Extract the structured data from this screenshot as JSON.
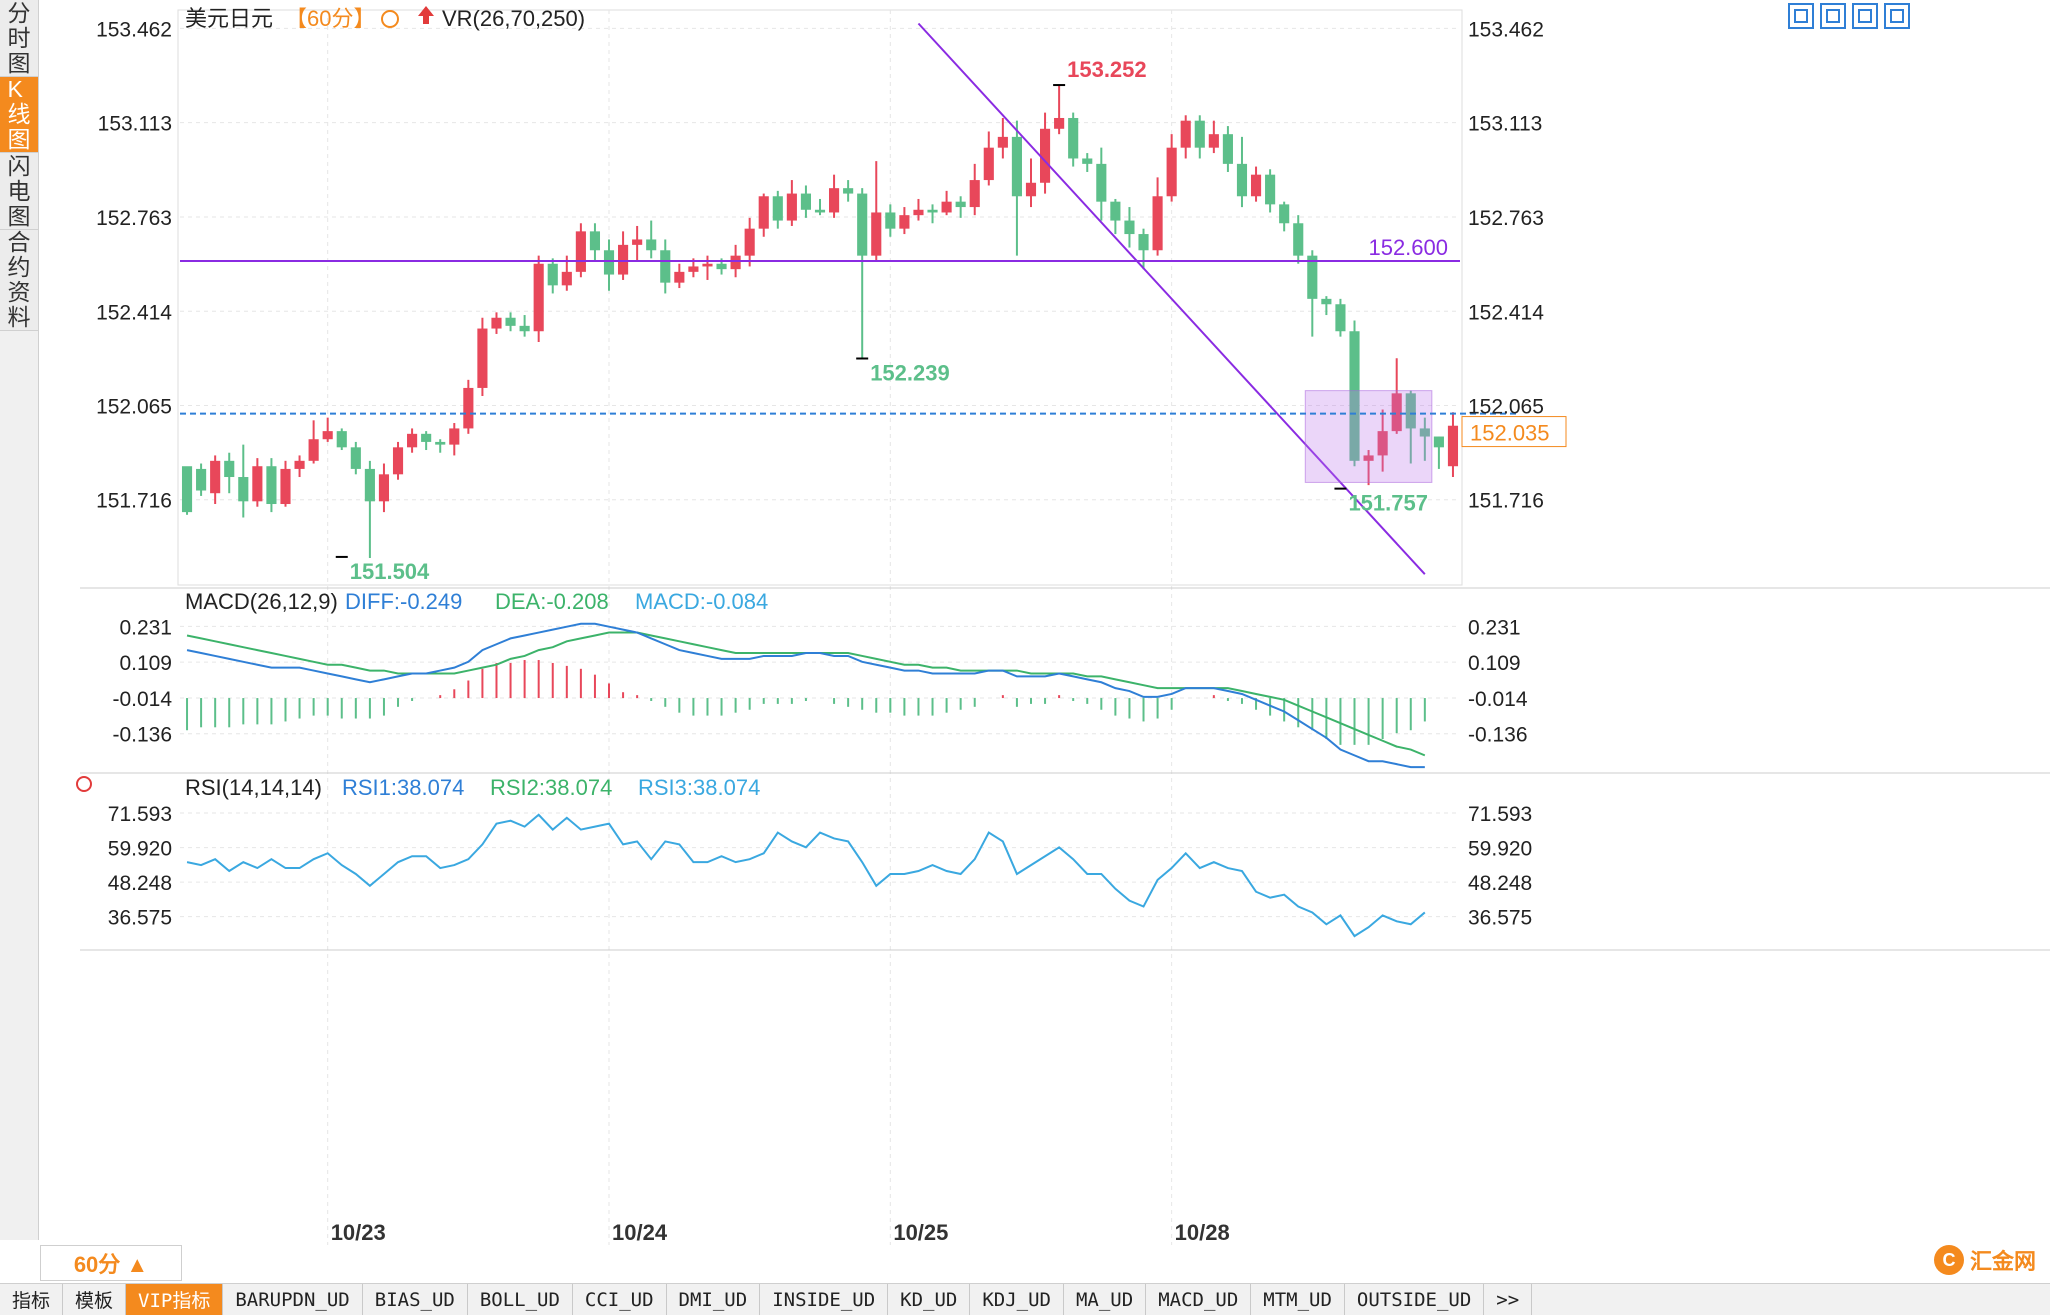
{
  "sidebar": {
    "items": [
      {
        "label": "分时图",
        "active": false
      },
      {
        "label": "K线图",
        "active": true
      },
      {
        "label": "闪电图",
        "active": false
      },
      {
        "label": "合约资料",
        "active": false
      }
    ]
  },
  "header": {
    "symbol": "美元日元",
    "period": "【60分】",
    "vr_label": "VR(26,70,250)"
  },
  "period_selector": "60分 ▲",
  "tabs": [
    "指标",
    "模板",
    "VIP指标",
    "BARUPDN_UD",
    "BIAS_UD",
    "BOLL_UD",
    "CCI_UD",
    "DMI_UD",
    "INSIDE_UD",
    "KD_UD",
    "KDJ_UD",
    "MA_UD",
    "MACD_UD",
    "MTM_UD",
    "OUTSIDE_UD",
    ">>"
  ],
  "logo_text": "汇金网",
  "colors": {
    "up": "#e8475a",
    "down": "#5cbf8a",
    "ma_line": "#8a2be2",
    "current_price": "#f48a1e",
    "diff": "#2f7fd6",
    "dea": "#3cb36a",
    "rsi": "#3aa8e0"
  },
  "chart_data": [
    {
      "type": "candlestick",
      "y_ticks": [
        "153.462",
        "153.113",
        "152.763",
        "152.414",
        "152.065",
        "151.716"
      ],
      "ylim": [
        151.4,
        153.53
      ],
      "x_ticks": [
        "10/23",
        "10/24",
        "10/25",
        "10/28"
      ],
      "x_tick_index": [
        10,
        30,
        50,
        70
      ],
      "horizontal_line": {
        "value": 152.6,
        "label": "152.600"
      },
      "current_price": {
        "value": 152.035,
        "label": "152.035"
      },
      "annotations": [
        {
          "label": "151.504",
          "index": 11,
          "value": 151.504,
          "kind": "low"
        },
        {
          "label": "152.239",
          "index": 48,
          "value": 152.239,
          "kind": "low"
        },
        {
          "label": "153.252",
          "index": 62,
          "value": 153.252,
          "kind": "high"
        },
        {
          "label": "151.757",
          "index": 82,
          "value": 151.757,
          "kind": "low"
        }
      ],
      "trendline": {
        "from": [
          52,
          153.48
        ],
        "to": [
          88,
          151.44
        ]
      },
      "highlight_box": {
        "from_index": 80,
        "to_index": 88,
        "high": 152.12,
        "low": 151.78
      },
      "candles": [
        [
          151.84,
          151.67,
          151.83,
          151.66
        ],
        [
          151.83,
          151.75,
          151.85,
          151.73
        ],
        [
          151.74,
          151.86,
          151.88,
          151.7
        ],
        [
          151.86,
          151.8,
          151.89,
          151.74
        ],
        [
          151.8,
          151.71,
          151.92,
          151.65
        ],
        [
          151.71,
          151.84,
          151.87,
          151.69
        ],
        [
          151.84,
          151.7,
          151.87,
          151.67
        ],
        [
          151.7,
          151.83,
          151.86,
          151.69
        ],
        [
          151.83,
          151.86,
          151.88,
          151.8
        ],
        [
          151.86,
          151.94,
          152.01,
          151.85
        ],
        [
          151.94,
          151.97,
          152.02,
          151.93
        ],
        [
          151.97,
          151.91,
          151.98,
          151.9
        ],
        [
          151.91,
          151.83,
          151.93,
          151.81
        ],
        [
          151.83,
          151.71,
          151.86,
          151.5
        ],
        [
          151.71,
          151.81,
          151.85,
          151.67
        ],
        [
          151.81,
          151.91,
          151.93,
          151.79
        ],
        [
          151.91,
          151.96,
          151.98,
          151.89
        ],
        [
          151.96,
          151.93,
          151.97,
          151.9
        ],
        [
          151.93,
          151.92,
          151.94,
          151.89
        ],
        [
          151.92,
          151.98,
          152.0,
          151.88
        ],
        [
          151.98,
          152.13,
          152.16,
          151.96
        ],
        [
          152.13,
          152.35,
          152.39,
          152.1
        ],
        [
          152.35,
          152.39,
          152.41,
          152.33
        ],
        [
          152.39,
          152.36,
          152.41,
          152.34
        ],
        [
          152.36,
          152.34,
          152.4,
          152.32
        ],
        [
          152.34,
          152.59,
          152.62,
          152.3
        ],
        [
          152.59,
          152.51,
          152.61,
          152.48
        ],
        [
          152.51,
          152.56,
          152.62,
          152.49
        ],
        [
          152.56,
          152.71,
          152.74,
          152.54
        ],
        [
          152.71,
          152.64,
          152.74,
          152.6
        ],
        [
          152.64,
          152.55,
          152.68,
          152.49
        ],
        [
          152.55,
          152.66,
          152.71,
          152.53
        ],
        [
          152.66,
          152.68,
          152.73,
          152.6
        ],
        [
          152.68,
          152.64,
          152.75,
          152.61
        ],
        [
          152.64,
          152.52,
          152.68,
          152.48
        ],
        [
          152.52,
          152.56,
          152.59,
          152.5
        ],
        [
          152.56,
          152.58,
          152.61,
          152.54
        ],
        [
          152.58,
          152.59,
          152.62,
          152.53
        ],
        [
          152.59,
          152.57,
          152.61,
          152.55
        ],
        [
          152.57,
          152.62,
          152.66,
          152.54
        ],
        [
          152.62,
          152.72,
          152.76,
          152.58
        ],
        [
          152.72,
          152.84,
          152.85,
          152.69
        ],
        [
          152.84,
          152.75,
          152.86,
          152.72
        ],
        [
          152.75,
          152.85,
          152.9,
          152.73
        ],
        [
          152.85,
          152.79,
          152.88,
          152.76
        ],
        [
          152.79,
          152.78,
          152.83,
          152.77
        ],
        [
          152.78,
          152.87,
          152.92,
          152.76
        ],
        [
          152.87,
          152.85,
          152.9,
          152.82
        ],
        [
          152.85,
          152.62,
          152.87,
          152.24
        ],
        [
          152.62,
          152.78,
          152.97,
          152.6
        ],
        [
          152.78,
          152.72,
          152.81,
          152.69
        ],
        [
          152.72,
          152.77,
          152.8,
          152.7
        ],
        [
          152.77,
          152.79,
          152.83,
          152.75
        ],
        [
          152.79,
          152.78,
          152.81,
          152.74
        ],
        [
          152.78,
          152.82,
          152.86,
          152.77
        ],
        [
          152.82,
          152.8,
          152.84,
          152.76
        ],
        [
          152.8,
          152.9,
          152.96,
          152.77
        ],
        [
          152.9,
          153.02,
          153.08,
          152.88
        ],
        [
          153.02,
          153.06,
          153.13,
          152.98
        ],
        [
          153.06,
          152.84,
          153.12,
          152.62
        ],
        [
          152.84,
          152.89,
          152.98,
          152.8
        ],
        [
          152.89,
          153.09,
          153.15,
          152.85
        ],
        [
          153.09,
          153.13,
          153.25,
          153.07
        ],
        [
          153.13,
          152.98,
          153.15,
          152.95
        ],
        [
          152.98,
          152.96,
          153.0,
          152.93
        ],
        [
          152.96,
          152.82,
          153.02,
          152.75
        ],
        [
          152.82,
          152.75,
          152.83,
          152.7
        ],
        [
          152.75,
          152.7,
          152.8,
          152.65
        ],
        [
          152.7,
          152.64,
          152.72,
          152.57
        ],
        [
          152.64,
          152.84,
          152.91,
          152.62
        ],
        [
          152.84,
          153.02,
          153.07,
          152.82
        ],
        [
          153.02,
          153.12,
          153.14,
          152.98
        ],
        [
          153.12,
          153.02,
          153.14,
          152.98
        ],
        [
          153.02,
          153.07,
          153.12,
          153.0
        ],
        [
          153.07,
          152.96,
          153.1,
          152.93
        ],
        [
          152.96,
          152.84,
          153.06,
          152.8
        ],
        [
          152.84,
          152.92,
          152.95,
          152.82
        ],
        [
          152.92,
          152.81,
          152.94,
          152.78
        ],
        [
          152.81,
          152.74,
          152.82,
          152.71
        ],
        [
          152.74,
          152.62,
          152.77,
          152.59
        ],
        [
          152.62,
          152.46,
          152.64,
          152.32
        ],
        [
          152.46,
          152.44,
          152.47,
          152.4
        ],
        [
          152.44,
          152.34,
          152.46,
          152.32
        ],
        [
          152.34,
          151.86,
          152.38,
          151.84
        ],
        [
          151.86,
          151.88,
          151.9,
          151.77
        ],
        [
          151.88,
          151.97,
          152.05,
          151.82
        ],
        [
          151.97,
          152.11,
          152.24,
          151.96
        ],
        [
          152.11,
          151.98,
          152.12,
          151.85
        ],
        [
          151.98,
          151.95,
          152.02,
          151.86
        ],
        [
          151.95,
          151.91,
          151.95,
          151.83
        ],
        [
          151.84,
          151.99,
          152.04,
          151.8
        ]
      ]
    },
    {
      "type": "line+bar",
      "title": "MACD(26,12,9)",
      "labels": [
        "DIFF:-0.249",
        "DEA:-0.208",
        "MACD:-0.084"
      ],
      "y_ticks": [
        "0.231",
        "0.109",
        "-0.014",
        "-0.136"
      ],
      "ylim": [
        -0.26,
        0.27
      ],
      "diff": [
        0.15,
        0.14,
        0.13,
        0.12,
        0.11,
        0.1,
        0.09,
        0.09,
        0.09,
        0.08,
        0.07,
        0.06,
        0.05,
        0.04,
        0.05,
        0.06,
        0.07,
        0.07,
        0.08,
        0.09,
        0.11,
        0.15,
        0.17,
        0.19,
        0.2,
        0.21,
        0.22,
        0.23,
        0.24,
        0.24,
        0.23,
        0.22,
        0.21,
        0.19,
        0.17,
        0.15,
        0.14,
        0.13,
        0.12,
        0.12,
        0.12,
        0.13,
        0.13,
        0.13,
        0.14,
        0.14,
        0.13,
        0.13,
        0.11,
        0.1,
        0.09,
        0.08,
        0.08,
        0.07,
        0.07,
        0.07,
        0.07,
        0.08,
        0.08,
        0.06,
        0.06,
        0.06,
        0.07,
        0.06,
        0.05,
        0.04,
        0.02,
        0.01,
        -0.01,
        -0.01,
        0.0,
        0.02,
        0.02,
        0.02,
        0.01,
        0.0,
        -0.02,
        -0.04,
        -0.06,
        -0.09,
        -0.12,
        -0.15,
        -0.19,
        -0.21,
        -0.23,
        -0.23,
        -0.24,
        -0.25,
        -0.25
      ],
      "dea": [
        0.2,
        0.19,
        0.18,
        0.17,
        0.16,
        0.15,
        0.14,
        0.13,
        0.12,
        0.11,
        0.1,
        0.1,
        0.09,
        0.08,
        0.08,
        0.07,
        0.07,
        0.07,
        0.07,
        0.07,
        0.08,
        0.09,
        0.1,
        0.12,
        0.13,
        0.15,
        0.16,
        0.18,
        0.19,
        0.2,
        0.21,
        0.21,
        0.21,
        0.2,
        0.19,
        0.18,
        0.17,
        0.16,
        0.15,
        0.14,
        0.14,
        0.14,
        0.14,
        0.14,
        0.14,
        0.14,
        0.14,
        0.14,
        0.13,
        0.12,
        0.11,
        0.1,
        0.1,
        0.09,
        0.09,
        0.08,
        0.08,
        0.08,
        0.08,
        0.08,
        0.07,
        0.07,
        0.07,
        0.07,
        0.06,
        0.06,
        0.05,
        0.04,
        0.03,
        0.02,
        0.02,
        0.02,
        0.02,
        0.02,
        0.02,
        0.01,
        0.0,
        -0.01,
        -0.02,
        -0.04,
        -0.06,
        -0.08,
        -0.1,
        -0.12,
        -0.14,
        -0.16,
        -0.18,
        -0.19,
        -0.21
      ],
      "histogram": [
        -0.11,
        -0.1,
        -0.1,
        -0.1,
        -0.09,
        -0.09,
        -0.09,
        -0.08,
        -0.07,
        -0.06,
        -0.06,
        -0.07,
        -0.07,
        -0.07,
        -0.06,
        -0.03,
        -0.01,
        0.0,
        0.01,
        0.03,
        0.06,
        0.1,
        0.12,
        0.12,
        0.13,
        0.13,
        0.12,
        0.11,
        0.1,
        0.08,
        0.05,
        0.02,
        0.01,
        -0.01,
        -0.03,
        -0.05,
        -0.06,
        -0.06,
        -0.06,
        -0.05,
        -0.04,
        -0.02,
        -0.02,
        -0.02,
        -0.01,
        0.0,
        -0.02,
        -0.03,
        -0.04,
        -0.05,
        -0.05,
        -0.06,
        -0.06,
        -0.06,
        -0.05,
        -0.04,
        -0.03,
        0.0,
        0.01,
        -0.03,
        -0.02,
        -0.02,
        0.01,
        -0.01,
        -0.02,
        -0.04,
        -0.06,
        -0.07,
        -0.08,
        -0.07,
        -0.04,
        0.0,
        0.0,
        0.01,
        -0.01,
        -0.02,
        -0.04,
        -0.06,
        -0.08,
        -0.1,
        -0.11,
        -0.14,
        -0.16,
        -0.16,
        -0.16,
        -0.14,
        -0.12,
        -0.11,
        -0.08
      ]
    },
    {
      "type": "line",
      "title": "RSI(14,14,14)",
      "labels": [
        "RSI1:38.074",
        "RSI2:38.074",
        "RSI3:38.074"
      ],
      "y_ticks": [
        "71.593",
        "59.920",
        "48.248",
        "36.575"
      ],
      "ylim": [
        27,
        76
      ],
      "rsi": [
        55,
        54,
        56,
        52,
        55,
        53,
        56,
        53,
        53,
        56,
        58,
        54,
        51,
        47,
        51,
        55,
        57,
        57,
        53,
        54,
        56,
        61,
        68,
        69,
        67,
        71,
        66,
        70,
        66,
        67,
        68,
        61,
        62,
        56,
        62,
        61,
        55,
        55,
        57,
        55,
        56,
        58,
        65,
        62,
        60,
        65,
        63,
        62,
        55,
        47,
        51,
        51,
        52,
        54,
        52,
        51,
        56,
        65,
        62,
        51,
        54,
        57,
        60,
        56,
        51,
        51,
        46,
        42,
        40,
        49,
        53,
        58,
        53,
        55,
        53,
        52,
        45,
        43,
        44,
        40,
        38,
        34,
        37,
        30,
        33,
        37,
        35,
        34,
        38
      ]
    }
  ]
}
